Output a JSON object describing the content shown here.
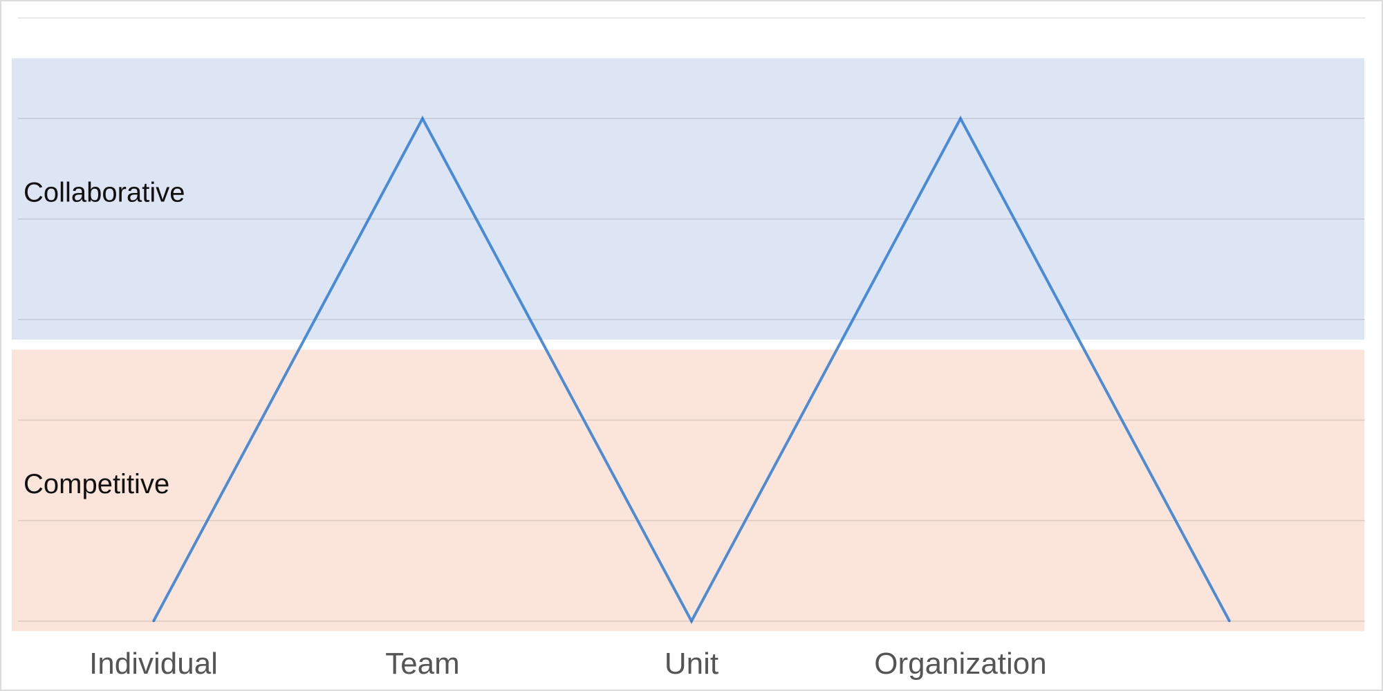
{
  "chart_data": {
    "type": "line",
    "categories": [
      "Individual",
      "Team",
      "Unit",
      "Organization",
      ""
    ],
    "series": [
      {
        "values": [
          0,
          5,
          0,
          5,
          0
        ],
        "color": "#2f7bd0"
      }
    ],
    "ylim": [
      0,
      6
    ],
    "bands": [
      {
        "label": "Collaborative",
        "from": 2.8,
        "to": 5.6,
        "color": "#dde4f3"
      },
      {
        "label": "Competitive",
        "from": -0.1,
        "to": 2.7,
        "color": "#fbe5db"
      }
    ],
    "grid": true,
    "legend": "none"
  }
}
